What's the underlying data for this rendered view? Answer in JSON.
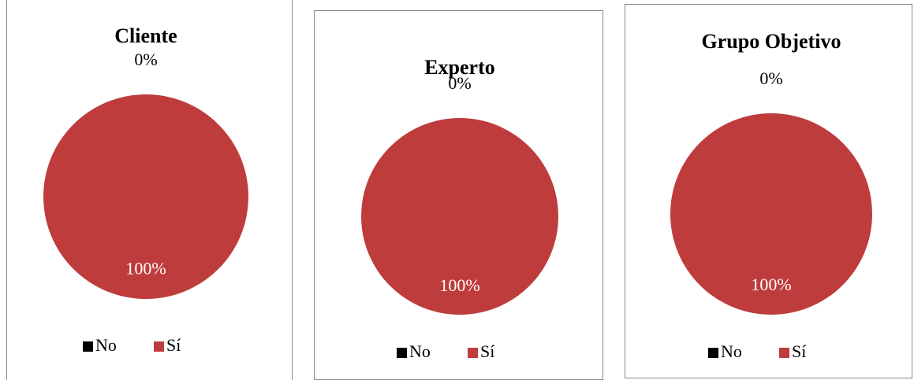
{
  "chart_data": [
    {
      "type": "pie",
      "title": "Cliente",
      "categories": [
        "No",
        "Sí"
      ],
      "values": [
        0,
        100
      ],
      "value_labels": [
        "0%",
        "100%"
      ],
      "colors": [
        "#000000",
        "#be3c3c"
      ],
      "legend": "bottom"
    },
    {
      "type": "pie",
      "title": "Experto",
      "categories": [
        "No",
        "Sí"
      ],
      "values": [
        0,
        100
      ],
      "value_labels": [
        "0%",
        "100%"
      ],
      "colors": [
        "#000000",
        "#be3c3c"
      ],
      "legend": "bottom"
    },
    {
      "type": "pie",
      "title": "Grupo Objetivo",
      "categories": [
        "No",
        "Sí"
      ],
      "values": [
        0,
        100
      ],
      "value_labels": [
        "0%",
        "100%"
      ],
      "colors": [
        "#000000",
        "#be3c3c"
      ],
      "legend": "bottom"
    }
  ]
}
